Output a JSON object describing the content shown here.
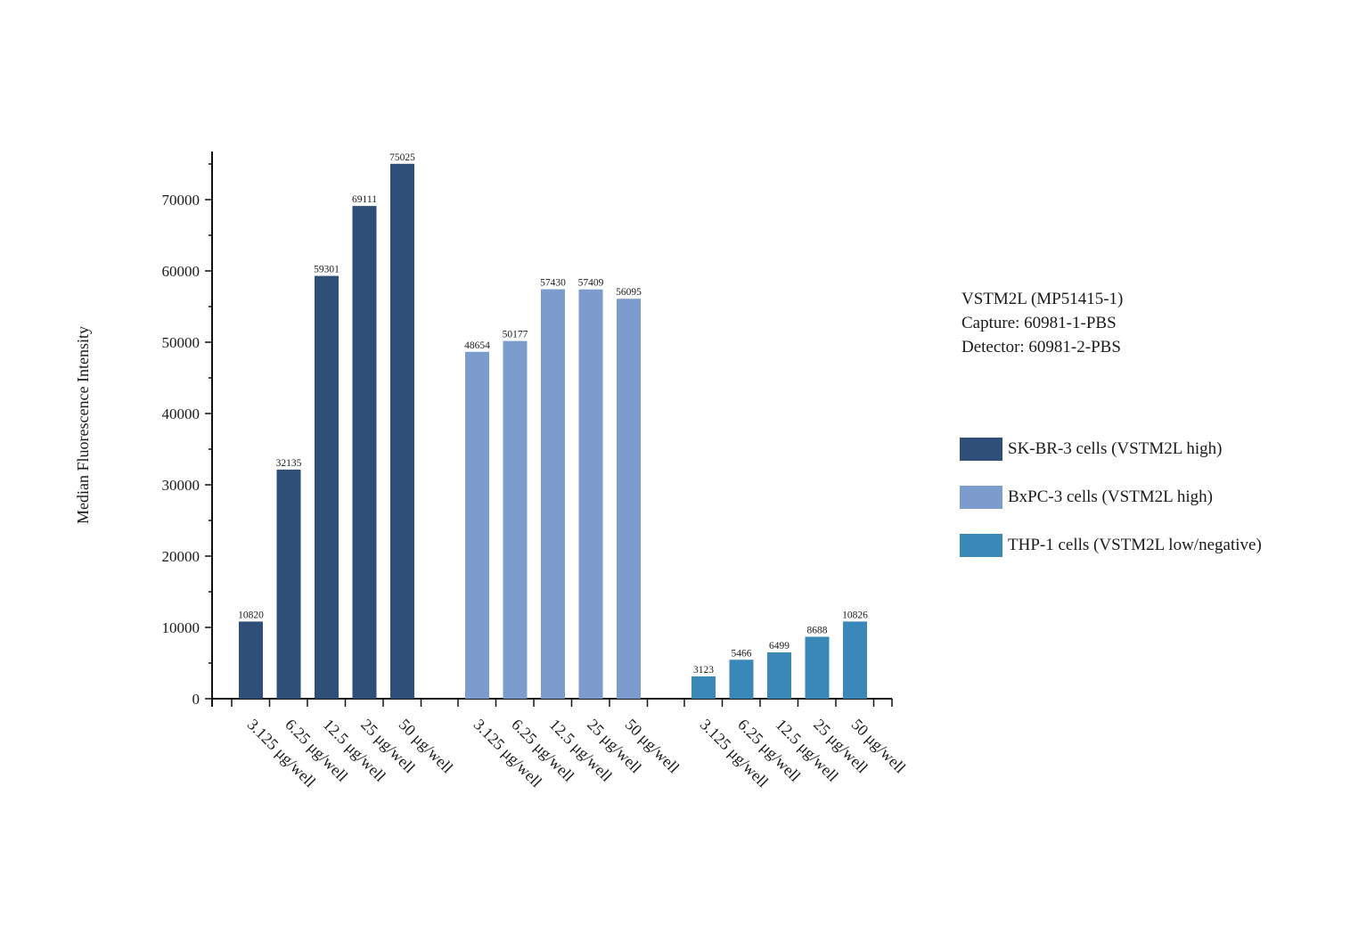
{
  "chart_data": {
    "type": "bar",
    "ylabel": "Median Fluorescence Intensity",
    "xlabel": "",
    "ylim": [
      0,
      76000
    ],
    "yticks": [
      0,
      10000,
      20000,
      30000,
      40000,
      50000,
      60000,
      70000
    ],
    "grid": false,
    "legend_position": "right",
    "categories": [
      "3.125 μg/well",
      "6.25 μg/well",
      "12.5 μg/well",
      "25 μg/well",
      "50 μg/well"
    ],
    "series": [
      {
        "name": "SK-BR-3 cells (VSTM2L high)",
        "color": "#2f4f79",
        "values": [
          10820,
          32135,
          59301,
          69111,
          75025
        ],
        "labels": [
          "10820",
          "32135",
          "59301",
          "69111",
          "75025"
        ]
      },
      {
        "name": "BxPC-3 cells (VSTM2L high)",
        "color": "#7b9ccc",
        "values": [
          48654,
          50177,
          57430,
          57409,
          56095
        ],
        "labels": [
          "48654",
          "50177",
          "57430",
          "57409",
          "56095"
        ]
      },
      {
        "name": "THP-1 cells (VSTM2L low/negative)",
        "color": "#3a88b8",
        "values": [
          3123,
          5466,
          6499,
          8688,
          10826
        ],
        "labels": [
          "3123",
          "5466",
          "6499",
          "8688",
          "10826"
        ]
      }
    ]
  },
  "info": {
    "line1": "VSTM2L (MP51415-1)",
    "line2": "Capture: 60981-1-PBS",
    "line3": "Detector: 60981-2-PBS"
  }
}
